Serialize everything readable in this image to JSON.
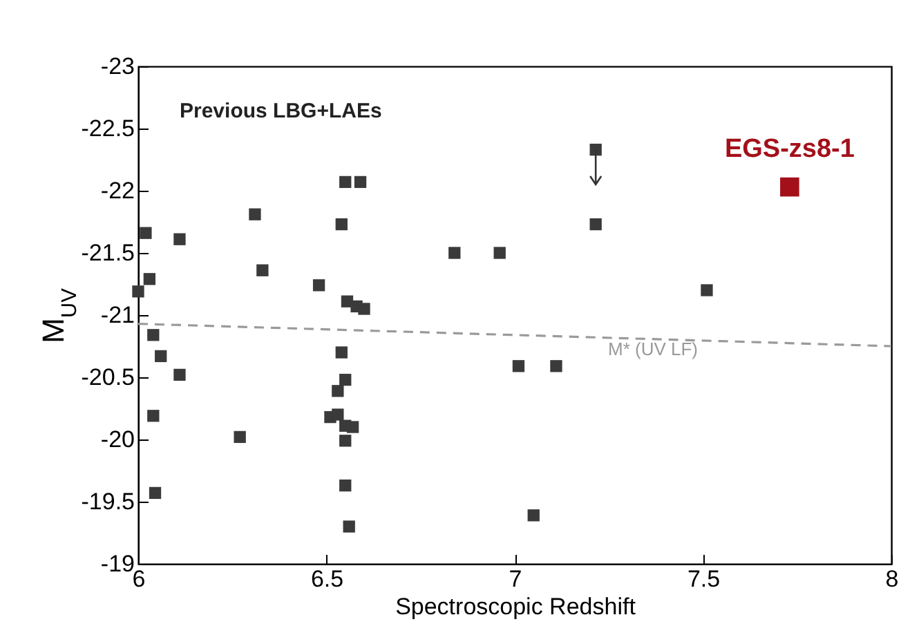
{
  "chart_data": {
    "type": "scatter",
    "xlabel": "Spectroscopic Redshift",
    "ylabel": "M$_{UV}$",
    "xlim": [
      6,
      8
    ],
    "xticks": [
      6,
      6.5,
      7,
      7.5,
      8
    ],
    "ylim": [
      -19,
      -23
    ],
    "yticks": [
      -19,
      -19.5,
      -20,
      -20.5,
      -21,
      -21.5,
      -22,
      -22.5,
      -23
    ],
    "marker": "square",
    "legend": false,
    "grid": false,
    "series": [
      {
        "name": "Previous LBG+LAEs",
        "color": "#3a3a3a",
        "x": [
          6.0,
          6.02,
          6.03,
          6.04,
          6.06,
          6.11,
          6.04,
          6.11,
          6.045,
          6.31,
          6.33,
          6.27,
          6.48,
          6.55,
          6.59,
          6.54,
          6.555,
          6.58,
          6.6,
          6.54,
          6.55,
          6.53,
          6.51,
          6.53,
          6.55,
          6.57,
          6.55,
          6.55,
          6.56,
          6.84,
          6.96,
          7.01,
          7.11,
          7.05,
          7.215,
          7.215,
          7.51
        ],
        "values": [
          -21.19,
          -21.66,
          -21.29,
          -20.84,
          -20.67,
          -20.52,
          -20.19,
          -21.61,
          -19.57,
          -21.81,
          -21.36,
          -20.02,
          -21.24,
          -22.07,
          -22.07,
          -21.73,
          -21.11,
          -21.07,
          -21.05,
          -20.7,
          -20.48,
          -20.39,
          -20.18,
          -20.2,
          -20.11,
          -20.1,
          -19.99,
          -19.63,
          -19.3,
          -21.5,
          -21.5,
          -20.59,
          -20.59,
          -19.39,
          -22.33,
          -21.73,
          -21.2
        ],
        "errors": [
          null,
          null,
          null,
          null,
          null,
          null,
          null,
          null,
          null,
          null,
          null,
          null,
          null,
          null,
          null,
          null,
          null,
          null,
          null,
          null,
          null,
          null,
          null,
          null,
          null,
          null,
          null,
          null,
          null,
          null,
          null,
          null,
          null,
          null,
          [
            -22.05,
            -22.33
          ],
          null,
          null
        ]
      },
      {
        "name": "EGS-zs8-1",
        "color": "#a3101a",
        "x": [
          7.73
        ],
        "values": [
          -22.03
        ]
      },
      {
        "type": "line",
        "color": "#9a9a9a",
        "line_style": "dashed",
        "marker": "none",
        "x": [
          6,
          8
        ],
        "values": [
          -20.93,
          -20.75
        ]
      }
    ],
    "annotations": [
      "M* (UV LF)"
    ]
  }
}
